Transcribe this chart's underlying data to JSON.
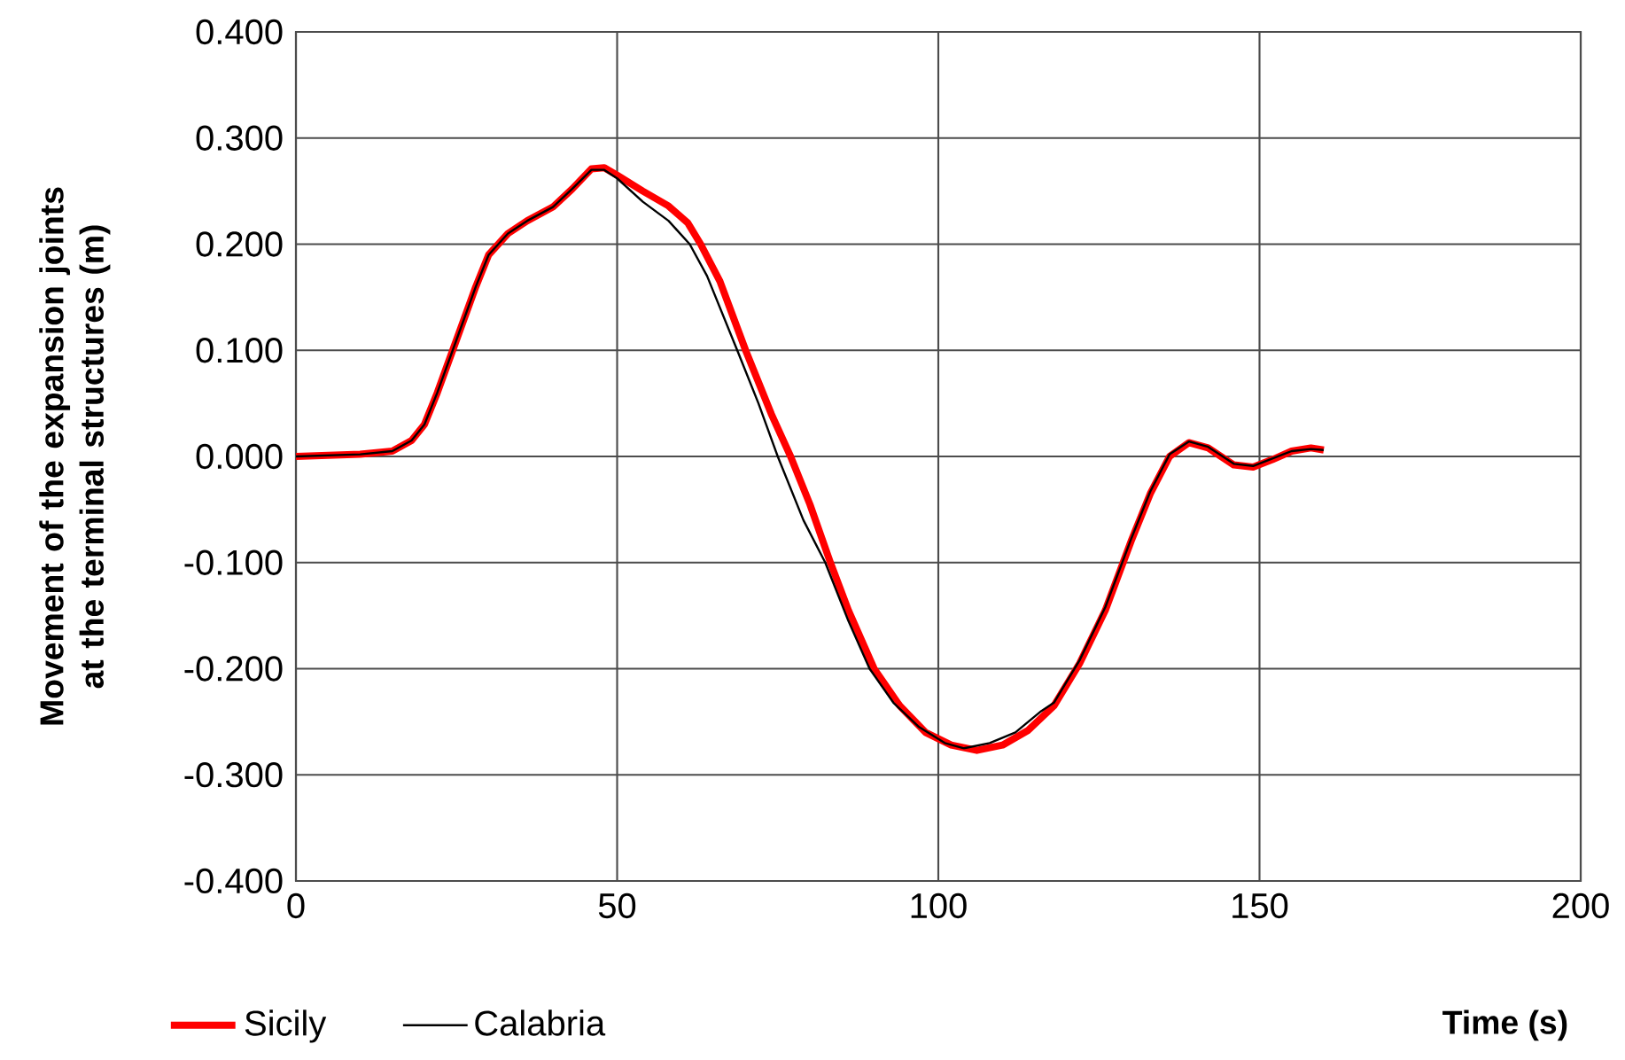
{
  "chart_data": {
    "type": "line",
    "xlabel": "Time (s)",
    "ylabel": "Movement of the expansion joints at the terminal structures (m)",
    "xlim": [
      0,
      200
    ],
    "xticks": [
      0,
      50,
      100,
      150,
      200
    ],
    "ylim": [
      -0.4,
      0.4
    ],
    "yticks": [
      {
        "value": -0.4,
        "label": "-0.400"
      },
      {
        "value": -0.3,
        "label": "-0.300"
      },
      {
        "value": -0.2,
        "label": "-0.200"
      },
      {
        "value": -0.1,
        "label": "-0.100"
      },
      {
        "value": 0,
        "label": "0.000"
      },
      {
        "value": 0.1,
        "label": "0.100"
      },
      {
        "value": 0.2,
        "label": "0.200"
      },
      {
        "value": 0.3,
        "label": "0.300"
      },
      {
        "value": 0.4,
        "label": "0.400"
      }
    ],
    "grid": true,
    "legend": "bottom left",
    "marker": "none",
    "line_style": "solid",
    "series": [
      {
        "name": "Sicily",
        "color": "#ff0000",
        "x": [
          0,
          10,
          15,
          18,
          20,
          22,
          25,
          28,
          30,
          33,
          36,
          40,
          43,
          46,
          48,
          50,
          54,
          58,
          61,
          63,
          66,
          70,
          74,
          77,
          80,
          83.2,
          86,
          90,
          94,
          98,
          102,
          106,
          110,
          114,
          118,
          122,
          126,
          130,
          133,
          136,
          139,
          142,
          146,
          149,
          152,
          155,
          158,
          160
        ],
        "values": [
          0,
          0.002,
          0.005,
          0.015,
          0.03,
          0.06,
          0.11,
          0.16,
          0.19,
          0.21,
          0.222,
          0.235,
          0.252,
          0.271,
          0.272,
          0.265,
          0.25,
          0.236,
          0.22,
          0.2,
          0.165,
          0.1,
          0.04,
          0,
          -0.045,
          -0.1,
          -0.145,
          -0.2,
          -0.235,
          -0.26,
          -0.272,
          -0.277,
          -0.272,
          -0.258,
          -0.235,
          -0.195,
          -0.145,
          -0.08,
          -0.035,
          0,
          0.013,
          0.008,
          -0.008,
          -0.01,
          -0.003,
          0.005,
          0.008,
          0.006
        ]
      },
      {
        "name": "Calabria",
        "color": "#000000",
        "x": [
          0,
          10,
          15,
          18,
          20,
          22,
          25,
          28,
          30,
          33,
          36,
          40,
          43,
          46,
          48,
          50,
          54,
          58,
          61.3,
          64,
          68.7,
          72,
          75,
          79,
          82.4,
          86,
          89.3,
          93,
          97,
          101,
          104,
          108,
          112,
          116,
          118,
          122,
          126,
          130,
          133,
          136,
          139,
          142,
          146,
          149,
          152,
          155,
          158,
          160
        ],
        "values": [
          0,
          0.002,
          0.005,
          0.015,
          0.03,
          0.06,
          0.11,
          0.16,
          0.19,
          0.21,
          0.222,
          0.235,
          0.252,
          0.27,
          0.27,
          0.262,
          0.24,
          0.222,
          0.2,
          0.17,
          0.1,
          0.05,
          0,
          -0.06,
          -0.1,
          -0.155,
          -0.2,
          -0.232,
          -0.255,
          -0.27,
          -0.275,
          -0.27,
          -0.26,
          -0.24,
          -0.232,
          -0.192,
          -0.142,
          -0.078,
          -0.033,
          0.002,
          0.014,
          0.009,
          -0.007,
          -0.009,
          -0.002,
          0.005,
          0.007,
          0.006
        ]
      }
    ]
  }
}
